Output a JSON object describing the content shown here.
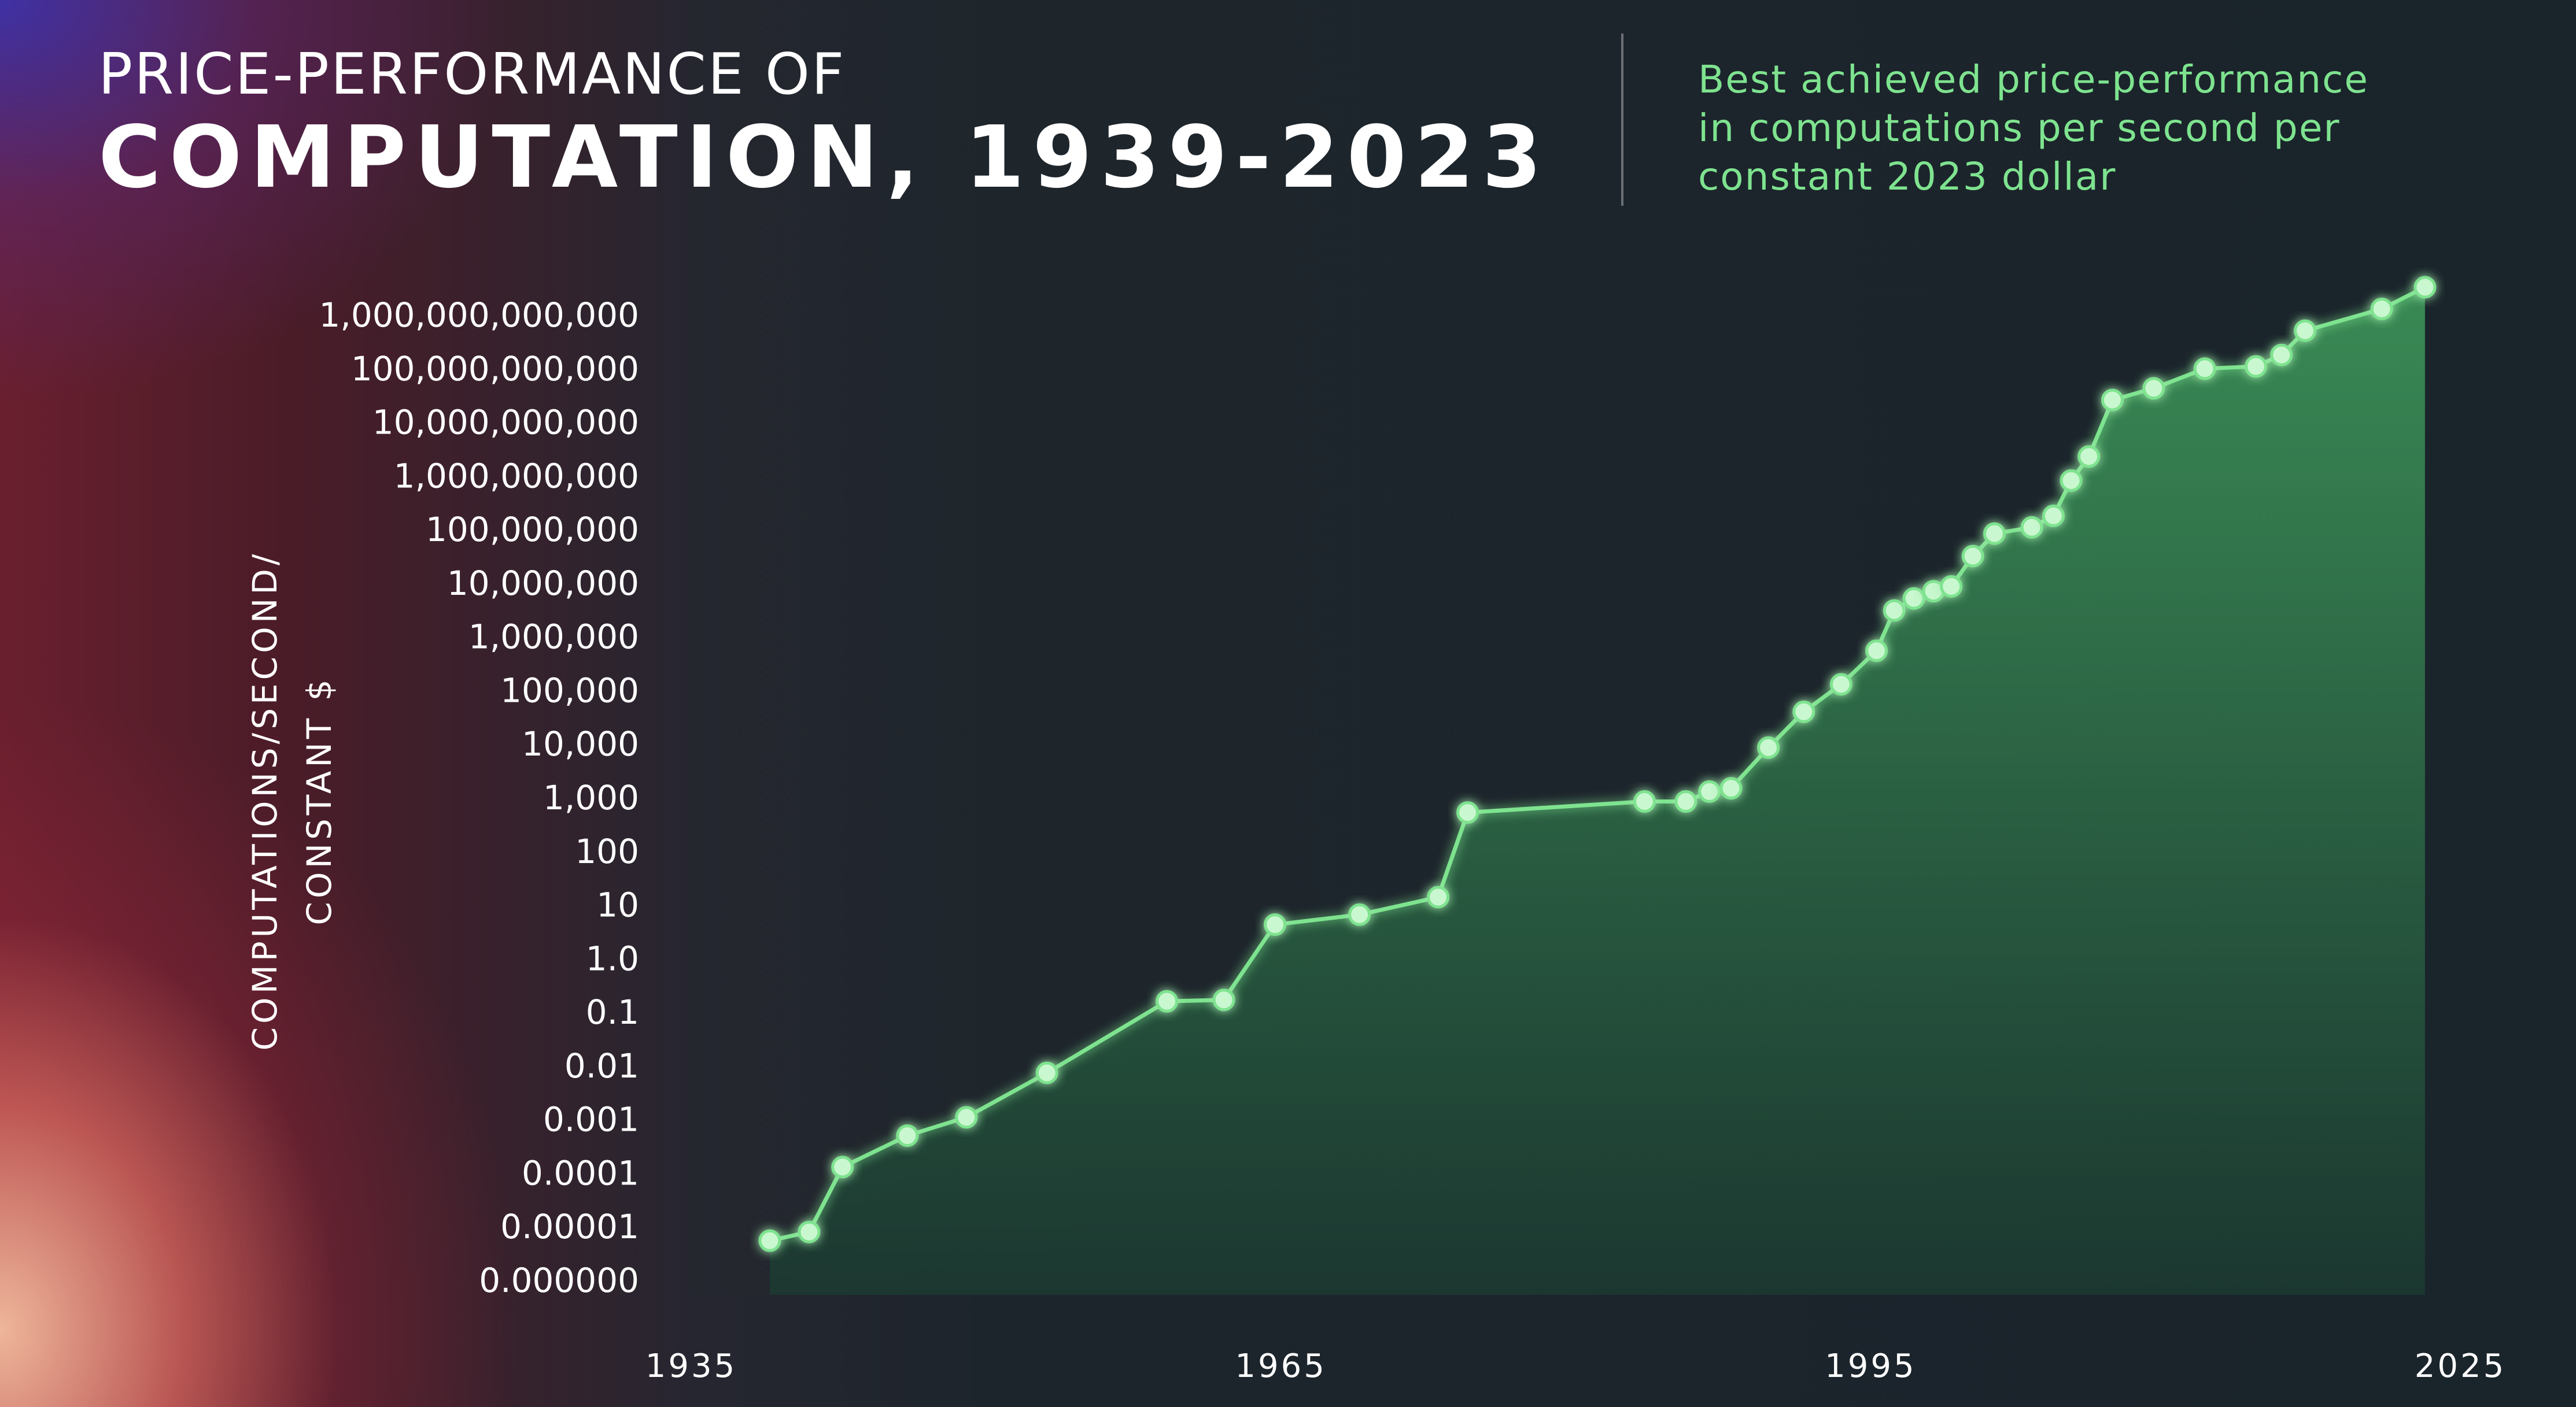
{
  "title": {
    "line1": "PRICE-PERFORMANCE OF",
    "line2": "COMPUTATION, 1939-2023"
  },
  "subtitle": {
    "line1": "Best achieved price-performance",
    "line2": "in computations per second per",
    "line3": "constant 2023 dollar"
  },
  "colors": {
    "accent": "#7ee38f",
    "area_top": "#3f9c5c",
    "area_bottom": "#1b3a31",
    "text": "#ffffff"
  },
  "chart_data": {
    "type": "area",
    "title": "PRICE-PERFORMANCE OF COMPUTATION, 1939-2023",
    "ylabel_lines": [
      "COMPUTATIONS/SECOND/",
      "CONSTANT $"
    ],
    "y_scale": "log",
    "ylim_exp": [
      -6,
      12
    ],
    "xlim": [
      1935,
      2029
    ],
    "x_ticks": [
      "1935",
      "1965",
      "1995",
      "2025"
    ],
    "y_ticks": [
      {
        "exp": 12,
        "label": "1,000,000,000,000"
      },
      {
        "exp": 11,
        "label": "100,000,000,000"
      },
      {
        "exp": 10,
        "label": "10,000,000,000"
      },
      {
        "exp": 9,
        "label": "1,000,000,000"
      },
      {
        "exp": 8,
        "label": "100,000,000"
      },
      {
        "exp": 7,
        "label": "10,000,000"
      },
      {
        "exp": 6,
        "label": "1,000,000"
      },
      {
        "exp": 5,
        "label": "100,000"
      },
      {
        "exp": 4,
        "label": "10,000"
      },
      {
        "exp": 3,
        "label": "1,000"
      },
      {
        "exp": 2,
        "label": "100"
      },
      {
        "exp": 1,
        "label": "10"
      },
      {
        "exp": 0,
        "label": "1.0"
      },
      {
        "exp": -1,
        "label": "0.1"
      },
      {
        "exp": -2,
        "label": "0.01"
      },
      {
        "exp": -3,
        "label": "0.001"
      },
      {
        "exp": -4,
        "label": "0.0001"
      },
      {
        "exp": -5,
        "label": "0.00001"
      },
      {
        "exp": -6,
        "label": "0.000000"
      }
    ],
    "points": [
      {
        "x": 1939.0,
        "y": 5.5e-06
      },
      {
        "x": 1941.0,
        "y": 8e-06
      },
      {
        "x": 1942.7,
        "y": 0.00013
      },
      {
        "x": 1946.0,
        "y": 0.0005
      },
      {
        "x": 1949.0,
        "y": 0.0011
      },
      {
        "x": 1953.1,
        "y": 0.0074
      },
      {
        "x": 1959.2,
        "y": 0.16
      },
      {
        "x": 1962.1,
        "y": 0.17
      },
      {
        "x": 1964.7,
        "y": 4.3
      },
      {
        "x": 1969.0,
        "y": 6.6
      },
      {
        "x": 1973.0,
        "y": 14
      },
      {
        "x": 1974.5,
        "y": 530
      },
      {
        "x": 1983.5,
        "y": 850
      },
      {
        "x": 1985.6,
        "y": 850
      },
      {
        "x": 1986.8,
        "y": 1300
      },
      {
        "x": 1987.9,
        "y": 1500
      },
      {
        "x": 1989.8,
        "y": 8600
      },
      {
        "x": 1991.6,
        "y": 40000
      },
      {
        "x": 1993.5,
        "y": 130000
      },
      {
        "x": 1995.3,
        "y": 550000
      },
      {
        "x": 1996.2,
        "y": 3100000
      },
      {
        "x": 1997.2,
        "y": 5200000
      },
      {
        "x": 1998.2,
        "y": 7100000
      },
      {
        "x": 1999.1,
        "y": 8700000
      },
      {
        "x": 2000.2,
        "y": 32000000
      },
      {
        "x": 2001.3,
        "y": 84000000
      },
      {
        "x": 2003.2,
        "y": 110000000
      },
      {
        "x": 2004.3,
        "y": 180000000
      },
      {
        "x": 2005.2,
        "y": 820000000
      },
      {
        "x": 2006.1,
        "y": 2300000000
      },
      {
        "x": 2007.3,
        "y": 26000000000
      },
      {
        "x": 2009.4,
        "y": 43000000000
      },
      {
        "x": 2012.0,
        "y": 100000000000
      },
      {
        "x": 2014.6,
        "y": 110000000000
      },
      {
        "x": 2015.9,
        "y": 180000000000
      },
      {
        "x": 2017.1,
        "y": 510000000000
      },
      {
        "x": 2021.0,
        "y": 1300000000000
      },
      {
        "x": 2023.2,
        "y": 3300000000000
      }
    ]
  }
}
